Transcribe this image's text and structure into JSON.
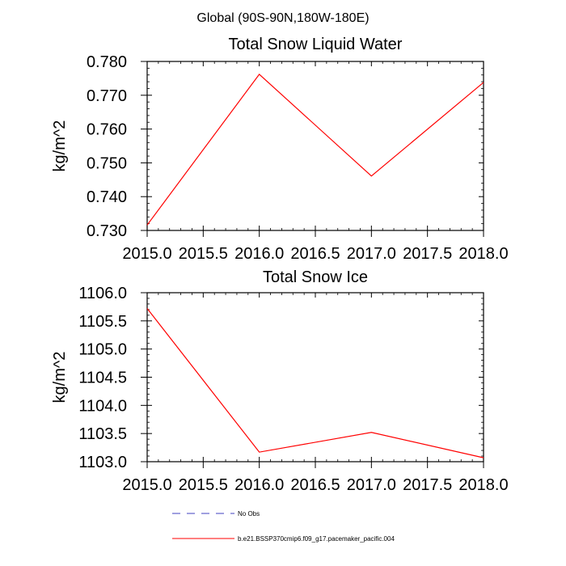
{
  "page_title": "Global (90S-90N,180W-180E)",
  "chart_data": [
    {
      "type": "line",
      "title": "Total Snow Liquid Water",
      "xlabel": "",
      "ylabel": "kg/m^2",
      "xlim": [
        2015.0,
        2018.0
      ],
      "ylim": [
        0.73,
        0.78
      ],
      "x_ticks": [
        2015.0,
        2015.5,
        2016.0,
        2016.5,
        2017.0,
        2017.5,
        2018.0
      ],
      "x_tick_labels": [
        "2015.0",
        "2015.5",
        "2016.0",
        "2016.5",
        "2017.0",
        "2017.5",
        "2018.0"
      ],
      "y_ticks": [
        0.73,
        0.74,
        0.75,
        0.76,
        0.77,
        0.78
      ],
      "y_tick_labels": [
        "0.730",
        "0.740",
        "0.750",
        "0.760",
        "0.770",
        "0.780"
      ],
      "grid": false,
      "series": [
        {
          "name": "b.e21.BSSP370cmip6.f09_g17.pacemaker_pacific.004",
          "color": "#ff0000",
          "x": [
            2015.0,
            2016.0,
            2017.0,
            2018.0
          ],
          "y": [
            0.7316,
            0.7762,
            0.7461,
            0.7738
          ]
        }
      ]
    },
    {
      "type": "line",
      "title": "Total Snow Ice",
      "xlabel": "",
      "ylabel": "kg/m^2",
      "xlim": [
        2015.0,
        2018.0
      ],
      "ylim": [
        1103.0,
        1106.0
      ],
      "x_ticks": [
        2015.0,
        2015.5,
        2016.0,
        2016.5,
        2017.0,
        2017.5,
        2018.0
      ],
      "x_tick_labels": [
        "2015.0",
        "2015.5",
        "2016.0",
        "2016.5",
        "2017.0",
        "2017.5",
        "2018.0"
      ],
      "y_ticks": [
        1103.0,
        1103.5,
        1104.0,
        1104.5,
        1105.0,
        1105.5,
        1106.0
      ],
      "y_tick_labels": [
        "1103.0",
        "1103.5",
        "1104.0",
        "1104.5",
        "1105.0",
        "1105.5",
        "1106.0"
      ],
      "grid": false,
      "series": [
        {
          "name": "b.e21.BSSP370cmip6.f09_g17.pacemaker_pacific.004",
          "color": "#ff0000",
          "x": [
            2015.0,
            2016.0,
            2017.0,
            2018.0
          ],
          "y": [
            1105.72,
            1103.17,
            1103.52,
            1103.07
          ]
        }
      ]
    }
  ],
  "legend": {
    "placement": "bottom",
    "entries": [
      {
        "label": "No Obs",
        "color": "#4040c0",
        "style": "dashed"
      },
      {
        "label": "b.e21.BSSP370cmip6.f09_g17.pacemaker_pacific.004",
        "color": "#ff0000",
        "style": "solid"
      }
    ]
  }
}
